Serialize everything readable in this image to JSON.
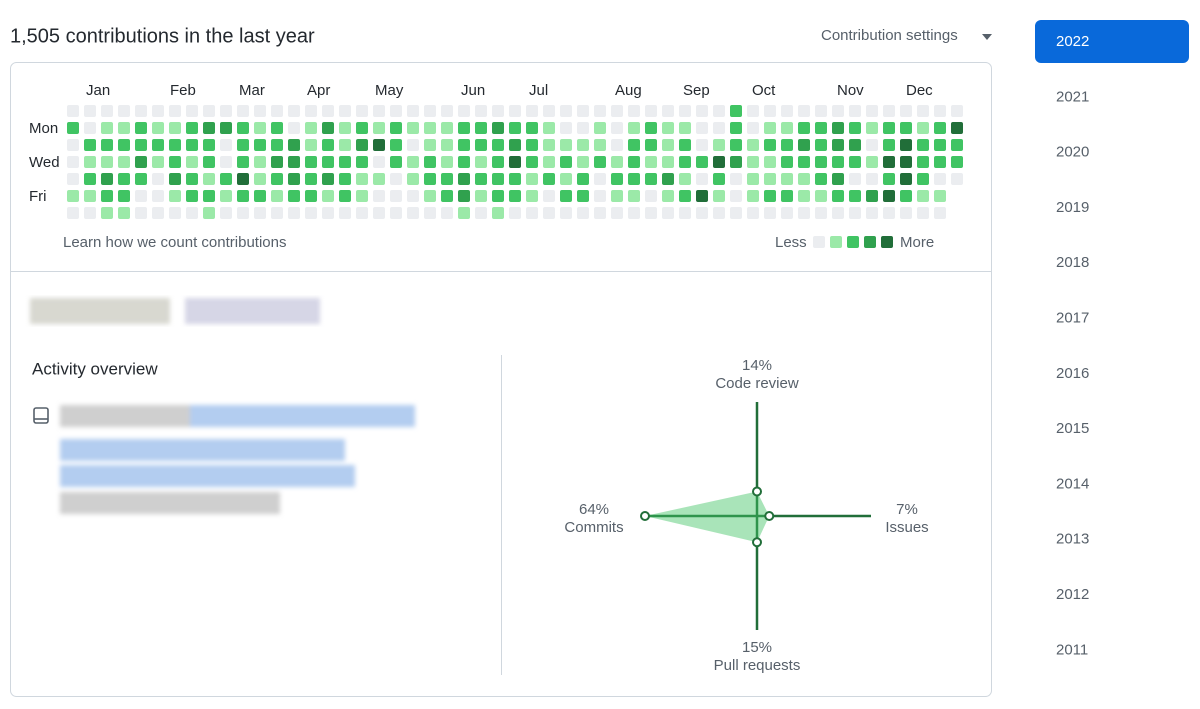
{
  "header": {
    "title": "1,505 contributions in the last year",
    "settings": "Contribution settings"
  },
  "calendar": {
    "months": [
      "Jan",
      "Feb",
      "Mar",
      "Apr",
      "May",
      "Jun",
      "Jul",
      "Aug",
      "Sep",
      "Oct",
      "Nov",
      "Dec"
    ],
    "weekdays": [
      "Mon",
      "Wed",
      "Fri"
    ],
    "level_colors": [
      "#ebedf0",
      "#9be9a8",
      "#40c463",
      "#30a14e",
      "#216e39"
    ],
    "weeks": [
      [
        0,
        2,
        0,
        0,
        0,
        1,
        0
      ],
      [
        0,
        0,
        2,
        1,
        2,
        1,
        0
      ],
      [
        0,
        1,
        2,
        1,
        3,
        2,
        1
      ],
      [
        0,
        1,
        2,
        1,
        2,
        2,
        1
      ],
      [
        0,
        2,
        2,
        3,
        2,
        0,
        0
      ],
      [
        0,
        1,
        2,
        1,
        0,
        0,
        0
      ],
      [
        0,
        1,
        2,
        2,
        3,
        1,
        0
      ],
      [
        0,
        2,
        2,
        1,
        2,
        2,
        0
      ],
      [
        0,
        3,
        2,
        2,
        1,
        2,
        1
      ],
      [
        0,
        3,
        0,
        0,
        2,
        1,
        0
      ],
      [
        0,
        2,
        2,
        2,
        4,
        2,
        0
      ],
      [
        0,
        1,
        2,
        1,
        1,
        2,
        0
      ],
      [
        0,
        2,
        2,
        3,
        2,
        1,
        0
      ],
      [
        0,
        0,
        3,
        3,
        3,
        2,
        0
      ],
      [
        0,
        1,
        1,
        2,
        2,
        2,
        0
      ],
      [
        0,
        3,
        2,
        2,
        3,
        1,
        0
      ],
      [
        0,
        1,
        1,
        2,
        2,
        2,
        0
      ],
      [
        0,
        2,
        3,
        2,
        1,
        1,
        0
      ],
      [
        0,
        1,
        4,
        0,
        1,
        0,
        0
      ],
      [
        0,
        2,
        2,
        2,
        0,
        0,
        0
      ],
      [
        0,
        1,
        0,
        1,
        1,
        0,
        0
      ],
      [
        0,
        1,
        1,
        2,
        2,
        1,
        0
      ],
      [
        0,
        1,
        1,
        1,
        2,
        2,
        0
      ],
      [
        0,
        2,
        2,
        2,
        3,
        3,
        1
      ],
      [
        0,
        2,
        2,
        1,
        2,
        1,
        0
      ],
      [
        0,
        3,
        2,
        2,
        2,
        2,
        1
      ],
      [
        0,
        2,
        3,
        4,
        2,
        2,
        0
      ],
      [
        0,
        2,
        2,
        2,
        1,
        1,
        0
      ],
      [
        0,
        1,
        1,
        1,
        2,
        0,
        0
      ],
      [
        0,
        0,
        1,
        2,
        1,
        2,
        0
      ],
      [
        0,
        0,
        1,
        1,
        2,
        2,
        0
      ],
      [
        0,
        1,
        1,
        2,
        0,
        0,
        0
      ],
      [
        0,
        0,
        0,
        1,
        2,
        1,
        0
      ],
      [
        0,
        1,
        2,
        2,
        2,
        1,
        0
      ],
      [
        0,
        2,
        2,
        1,
        2,
        0,
        0
      ],
      [
        0,
        1,
        1,
        1,
        3,
        1,
        0
      ],
      [
        0,
        1,
        2,
        2,
        1,
        2,
        0
      ],
      [
        0,
        0,
        0,
        2,
        0,
        4,
        0
      ],
      [
        0,
        0,
        1,
        4,
        2,
        1,
        0
      ],
      [
        2,
        2,
        2,
        3,
        0,
        0,
        0
      ],
      [
        0,
        0,
        1,
        1,
        1,
        1,
        0
      ],
      [
        0,
        1,
        2,
        1,
        1,
        2,
        0
      ],
      [
        0,
        1,
        2,
        2,
        1,
        2,
        0
      ],
      [
        0,
        2,
        3,
        2,
        1,
        1,
        0
      ],
      [
        0,
        2,
        2,
        2,
        2,
        1,
        0
      ],
      [
        0,
        3,
        3,
        2,
        3,
        2,
        0
      ],
      [
        0,
        2,
        3,
        2,
        0,
        2,
        0
      ],
      [
        0,
        1,
        0,
        1,
        0,
        3,
        0
      ],
      [
        0,
        2,
        2,
        4,
        2,
        4,
        0
      ],
      [
        0,
        2,
        4,
        4,
        4,
        2,
        0
      ],
      [
        0,
        1,
        2,
        2,
        2,
        1,
        0
      ],
      [
        0,
        2,
        2,
        2,
        0,
        1,
        0
      ],
      [
        0,
        4,
        2,
        2,
        0,
        null,
        null
      ]
    ],
    "learn_link": "Learn how we count contributions",
    "legend_less": "Less",
    "legend_more": "More"
  },
  "activity": {
    "title": "Activity overview",
    "axes": [
      {
        "name": "Code review",
        "value": 14,
        "value_label": "14%"
      },
      {
        "name": "Issues",
        "value": 7,
        "value_label": "7%"
      },
      {
        "name": "Pull requests",
        "value": 15,
        "value_label": "15%"
      },
      {
        "name": "Commits",
        "value": 64,
        "value_label": "64%"
      }
    ]
  },
  "years": {
    "items": [
      "2022",
      "2021",
      "2020",
      "2019",
      "2018",
      "2017",
      "2016",
      "2015",
      "2014",
      "2013",
      "2012",
      "2011"
    ],
    "selected": 0
  }
}
